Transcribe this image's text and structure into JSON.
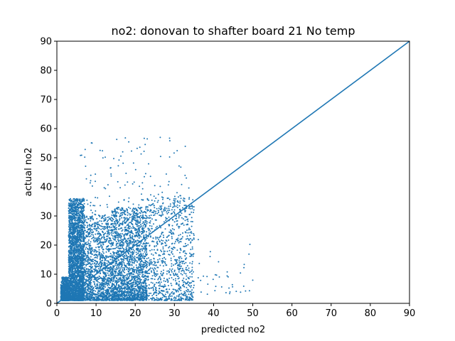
{
  "chart_data": {
    "type": "scatter",
    "title": "no2: donovan to shafter board 21 No temp",
    "xlabel": "predicted no2",
    "ylabel": "actual no2",
    "xlim": [
      0,
      90
    ],
    "ylim": [
      0,
      90
    ],
    "x_ticks": [
      "0",
      "10",
      "20",
      "30",
      "40",
      "50",
      "60",
      "70",
      "80",
      "90"
    ],
    "y_ticks": [
      "0",
      "10",
      "20",
      "30",
      "40",
      "50",
      "60",
      "70",
      "80",
      "90"
    ],
    "grid": false,
    "color": "#1f77b4",
    "series": [
      {
        "type": "scatter",
        "clusters": [
          {
            "x_range": [
              1,
              3
            ],
            "y_range": [
              1,
              9
            ],
            "count": 700
          },
          {
            "x_range": [
              3,
              7
            ],
            "y_range": [
              1,
              36
            ],
            "count": 2600
          },
          {
            "x_range": [
              7,
              14
            ],
            "y_range": [
              1,
              30
            ],
            "count": 1200
          },
          {
            "x_range": [
              14,
              23
            ],
            "y_range": [
              1,
              33
            ],
            "count": 2000
          },
          {
            "x_range": [
              23,
              35
            ],
            "y_range": [
              1,
              37
            ],
            "count": 900
          },
          {
            "x_range": [
              6,
              35
            ],
            "y_range": [
              30,
              57
            ],
            "count": 160
          },
          {
            "x_range": [
              34,
              50
            ],
            "y_range": [
              3,
              24
            ],
            "count": 40
          }
        ]
      },
      {
        "type": "line",
        "x": [
          0,
          90
        ],
        "y": [
          0,
          90
        ]
      }
    ]
  }
}
